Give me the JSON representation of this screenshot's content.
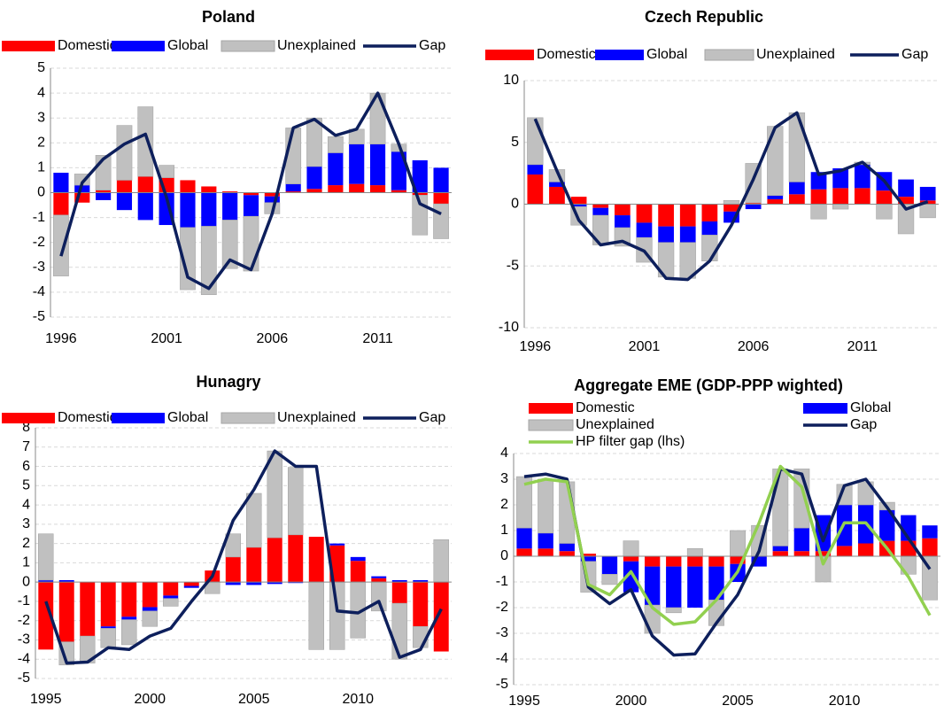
{
  "chart_data": [
    {
      "type": "bar",
      "title": "Poland",
      "categories": [
        "1996",
        null,
        null,
        null,
        null,
        "2001",
        null,
        null,
        null,
        null,
        "2006",
        null,
        null,
        null,
        null,
        "2011",
        null,
        null,
        null
      ],
      "series": [
        {
          "name": "Domestic",
          "color": "#ff0000",
          "kind": "bar",
          "values": [
            -0.9,
            -0.4,
            0.1,
            0.5,
            0.65,
            0.6,
            0.5,
            0.25,
            0.05,
            -0.1,
            -0.15,
            0.05,
            0.15,
            0.3,
            0.35,
            0.3,
            0.1,
            -0.1,
            -0.45
          ]
        },
        {
          "name": "Global",
          "color": "#0000ff",
          "kind": "bar",
          "values": [
            0.8,
            0.3,
            -0.3,
            -0.7,
            -1.1,
            -1.3,
            -1.4,
            -1.35,
            -1.1,
            -0.85,
            -0.25,
            0.3,
            0.9,
            1.3,
            1.6,
            1.65,
            1.55,
            1.3,
            1.0
          ]
        },
        {
          "name": "Unexplained",
          "color": "#c0c0c0",
          "kind": "bar",
          "values": [
            -2.45,
            0.45,
            1.4,
            2.2,
            2.8,
            0.5,
            -2.5,
            -2.75,
            -1.95,
            -2.2,
            -0.45,
            2.25,
            1.95,
            0.65,
            0.6,
            2.05,
            0.3,
            -1.6,
            -1.4
          ]
        },
        {
          "name": "Gap",
          "color": "#0d1f5c",
          "kind": "line",
          "values": [
            -2.55,
            0.4,
            1.35,
            1.95,
            2.35,
            -0.2,
            -3.4,
            -3.85,
            -2.7,
            -3.1,
            -0.85,
            2.6,
            2.95,
            2.3,
            2.55,
            4.0,
            1.95,
            -0.45,
            -0.85
          ]
        }
      ],
      "ylim": [
        -5,
        5
      ],
      "yticks": [
        -5,
        -4,
        -3,
        -2,
        -1,
        0,
        1,
        2,
        3,
        4,
        5
      ],
      "grid": true
    },
    {
      "type": "bar",
      "title": "Czech Republic",
      "categories": [
        "1996",
        null,
        null,
        null,
        null,
        "2001",
        null,
        null,
        null,
        null,
        "2006",
        null,
        null,
        null,
        null,
        "2011",
        null,
        null,
        null
      ],
      "series": [
        {
          "name": "Domestic",
          "color": "#ff0000",
          "kind": "bar",
          "values": [
            2.4,
            1.4,
            0.6,
            -0.3,
            -0.9,
            -1.5,
            -1.8,
            -1.8,
            -1.4,
            -0.6,
            0.1,
            0.4,
            0.8,
            1.2,
            1.3,
            1.3,
            1.1,
            0.6,
            0.3
          ]
        },
        {
          "name": "Global",
          "color": "#0000ff",
          "kind": "bar",
          "values": [
            0.8,
            0.4,
            -0.2,
            -0.6,
            -1.0,
            -1.2,
            -1.3,
            -1.3,
            -1.1,
            -0.9,
            -0.4,
            0.3,
            1.0,
            1.4,
            1.6,
            1.9,
            1.5,
            1.4,
            1.1
          ]
        },
        {
          "name": "Unexplained",
          "color": "#c0c0c0",
          "kind": "bar",
          "values": [
            3.8,
            1.0,
            -1.5,
            -2.4,
            -1.5,
            -2.0,
            -2.8,
            -2.9,
            -2.1,
            0.3,
            3.2,
            5.6,
            5.6,
            -1.2,
            -0.4,
            0.2,
            -1.2,
            -2.4,
            -1.1
          ]
        },
        {
          "name": "Gap",
          "color": "#0d1f5c",
          "kind": "line",
          "values": [
            6.9,
            2.7,
            -1.3,
            -3.3,
            -3.0,
            -3.8,
            -6.0,
            -6.1,
            -4.6,
            -1.7,
            2.0,
            6.2,
            7.4,
            2.4,
            2.7,
            3.4,
            1.9,
            -0.4,
            0.2
          ]
        }
      ],
      "ylim": [
        -10,
        10
      ],
      "yticks": [
        -10,
        -5,
        0,
        5,
        10
      ],
      "grid": true
    },
    {
      "type": "bar",
      "title": "Hunagry",
      "categories": [
        "1995",
        null,
        null,
        null,
        null,
        "2000",
        null,
        null,
        null,
        null,
        "2005",
        null,
        null,
        null,
        null,
        "2010",
        null,
        null,
        null,
        null
      ],
      "series": [
        {
          "name": "Domestic",
          "color": "#ff0000",
          "kind": "bar",
          "values": [
            -3.5,
            -3.1,
            -2.8,
            -2.3,
            -1.8,
            -1.3,
            -0.7,
            -0.2,
            0.6,
            1.3,
            1.8,
            2.3,
            2.45,
            2.35,
            1.9,
            1.1,
            0.2,
            -1.1,
            -2.3,
            -3.6
          ]
        },
        {
          "name": "Global",
          "color": "#0000ff",
          "kind": "bar",
          "values": [
            0.1,
            0.1,
            0,
            -0.1,
            -0.15,
            -0.2,
            -0.15,
            -0.1,
            0,
            -0.15,
            -0.15,
            -0.1,
            -0.05,
            0,
            0.1,
            0.2,
            0.1,
            0.1,
            0.1,
            0
          ]
        },
        {
          "name": "Unexplained",
          "color": "#c0c0c0",
          "kind": "bar",
          "values": [
            2.4,
            -1.2,
            -1.4,
            -1.0,
            -1.3,
            -0.8,
            -0.4,
            0,
            -0.6,
            1.2,
            2.8,
            4.5,
            3.5,
            -3.5,
            -3.5,
            -2.9,
            -1.5,
            -2.9,
            -1.1,
            2.2
          ]
        },
        {
          "name": "Gap",
          "color": "#0d1f5c",
          "kind": "line",
          "values": [
            -1.0,
            -4.2,
            -4.15,
            -3.4,
            -3.5,
            -2.8,
            -2.4,
            -1.0,
            0.3,
            3.2,
            4.8,
            6.8,
            6.0,
            6.0,
            -1.5,
            -1.6,
            -1.0,
            -3.9,
            -3.5,
            -1.4
          ]
        }
      ],
      "ylim": [
        -5,
        8
      ],
      "yticks": [
        -5,
        -4,
        -3,
        -2,
        -1,
        0,
        1,
        2,
        3,
        4,
        5,
        6,
        7,
        8
      ],
      "grid": true
    },
    {
      "type": "bar",
      "title": "Aggregate EME (GDP-PPP wighted)",
      "categories": [
        "1995",
        null,
        null,
        null,
        null,
        "2000",
        null,
        null,
        null,
        null,
        "2005",
        null,
        null,
        null,
        null,
        "2010",
        null,
        null,
        null,
        null
      ],
      "series": [
        {
          "name": "Domestic",
          "color": "#ff0000",
          "kind": "bar",
          "values": [
            0.3,
            0.3,
            0.2,
            0.1,
            0,
            -0.2,
            -0.4,
            -0.4,
            -0.4,
            -0.4,
            -0.3,
            0,
            0.2,
            0.2,
            0.2,
            0.4,
            0.5,
            0.6,
            0.6,
            0.7
          ]
        },
        {
          "name": "Global",
          "color": "#0000ff",
          "kind": "bar",
          "values": [
            0.8,
            0.6,
            0.3,
            -0.2,
            -0.7,
            -1.2,
            -1.5,
            -1.6,
            -1.6,
            -1.3,
            -0.7,
            -0.4,
            0.2,
            0.9,
            1.4,
            1.6,
            1.5,
            1.2,
            1.0,
            0.5
          ]
        },
        {
          "name": "Unexplained",
          "color": "#c0c0c0",
          "kind": "bar",
          "values": [
            2.0,
            2.1,
            2.4,
            -1.2,
            -0.4,
            0.6,
            -1.1,
            -0.2,
            0.3,
            -1.0,
            1.0,
            1.2,
            3.0,
            2.3,
            -1.0,
            0.8,
            0.9,
            0.3,
            -0.7,
            -1.7
          ]
        },
        {
          "name": "Gap",
          "color": "#0d1f5c",
          "kind": "line",
          "values": [
            3.1,
            3.2,
            3.0,
            -1.2,
            -1.85,
            -1.3,
            -3.1,
            -3.85,
            -3.8,
            -2.6,
            -1.5,
            0.2,
            3.4,
            3.2,
            0.6,
            2.75,
            3.0,
            1.9,
            0.7,
            -0.5
          ]
        },
        {
          "name": "HP filter gap (lhs)",
          "color": "#92d050",
          "kind": "line",
          "values": [
            2.8,
            3.0,
            2.9,
            -1.1,
            -1.5,
            -0.6,
            -2.0,
            -2.65,
            -2.55,
            -1.7,
            -0.6,
            1.3,
            3.5,
            2.7,
            -0.3,
            1.3,
            1.3,
            0.3,
            -0.8,
            -2.3
          ]
        }
      ],
      "ylim": [
        -5,
        4
      ],
      "yticks": [
        -5,
        -4,
        -3,
        -2,
        -1,
        0,
        1,
        2,
        3,
        4
      ],
      "grid": true
    }
  ]
}
